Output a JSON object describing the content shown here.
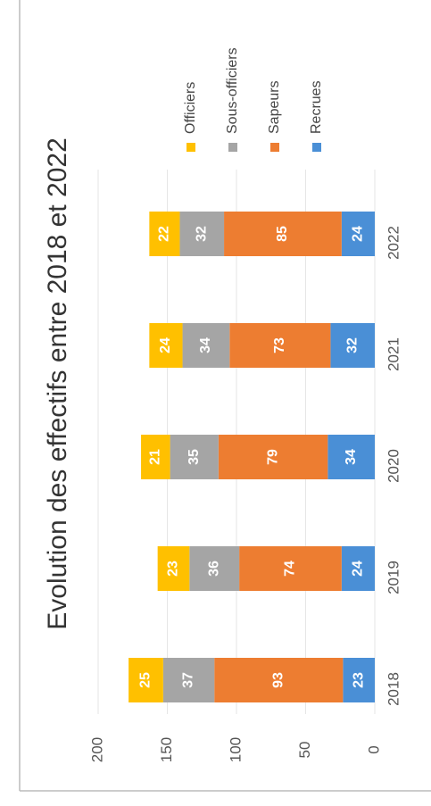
{
  "chart_data": {
    "type": "bar",
    "stacked": true,
    "orientation": "rotated",
    "title": "Evolution des effectifs entre 2018 et 2022",
    "categories": [
      "2018",
      "2019",
      "2020",
      "2021",
      "2022"
    ],
    "series": [
      {
        "name": "Officiers",
        "color": "#ffc000",
        "values": [
          25,
          23,
          21,
          24,
          22
        ]
      },
      {
        "name": "Sous-officiers",
        "color": "#a5a5a5",
        "values": [
          37,
          36,
          35,
          34,
          32
        ]
      },
      {
        "name": "Sapeurs",
        "color": "#ed7d31",
        "values": [
          93,
          74,
          79,
          73,
          85
        ]
      },
      {
        "name": "Recrues",
        "color": "#4a8fd6",
        "values": [
          23,
          24,
          34,
          32,
          24
        ]
      }
    ],
    "ylim": [
      0,
      200
    ],
    "yticks": [
      0,
      50,
      100,
      150,
      200
    ],
    "grid": true,
    "legend": "top"
  }
}
